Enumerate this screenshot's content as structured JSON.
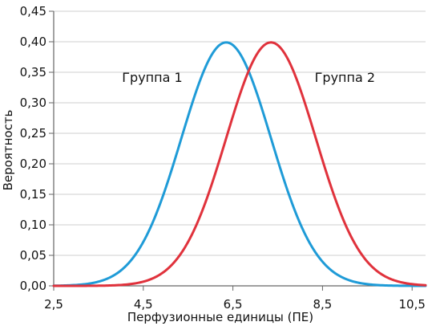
{
  "chart_data": {
    "type": "line",
    "title": "",
    "xlabel": "Перфузионные единицы (ПЕ)",
    "ylabel": "Вероятность",
    "xlim": [
      2.5,
      10.8
    ],
    "ylim": [
      0,
      0.45
    ],
    "x_ticks": [
      2.5,
      4.5,
      6.5,
      8.5,
      10.5
    ],
    "x_tick_labels": [
      "2,5",
      "4,5",
      "6,5",
      "8,5",
      "10,5"
    ],
    "y_ticks": [
      0,
      0.05,
      0.1,
      0.15,
      0.2,
      0.25,
      0.3,
      0.35,
      0.4,
      0.45
    ],
    "y_tick_labels": [
      "0,00",
      "0,05",
      "0,10",
      "0,15",
      "0,20",
      "0,25",
      "0,30",
      "0,35",
      "0,40",
      "0,45"
    ],
    "grid": "horizontal",
    "series": [
      {
        "name": "Группа 1",
        "color": "#1f9bd7",
        "mean": 6.35,
        "sd": 1.0,
        "label_anchor_x": 4.7,
        "label_anchor_y": 0.334
      },
      {
        "name": "Группа 2",
        "color": "#e0323c",
        "mean": 7.35,
        "sd": 1.0,
        "label_anchor_x": 9.0,
        "label_anchor_y": 0.334
      }
    ]
  }
}
